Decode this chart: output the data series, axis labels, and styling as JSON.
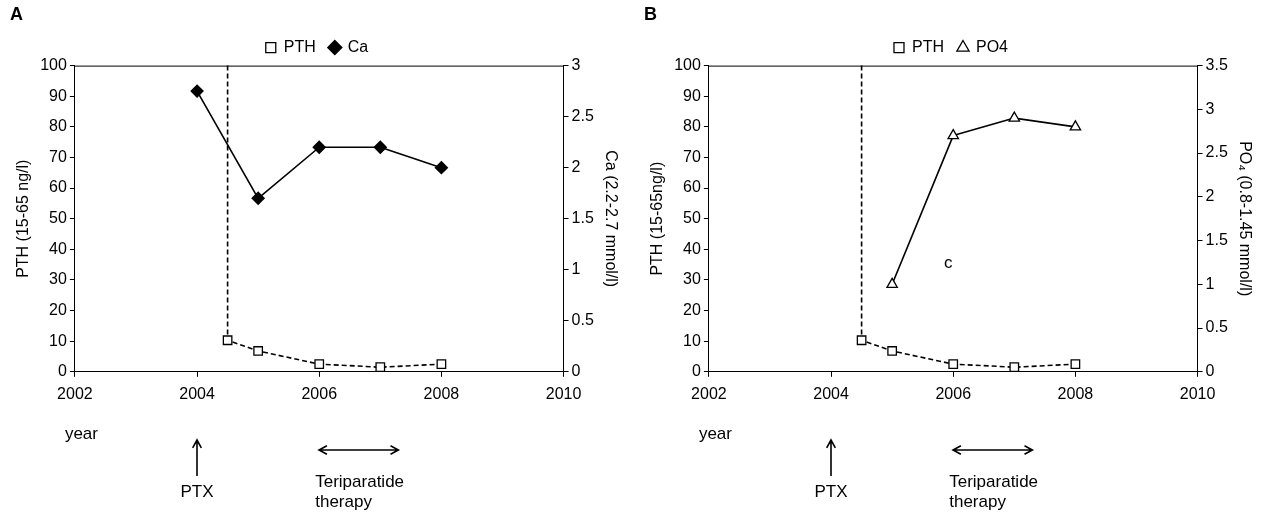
{
  "chart_data": [
    {
      "type": "line",
      "title": "A",
      "xlabel": "year",
      "ylabel": "PTH (15-65 ng/l)",
      "y2label": "Ca (2.2-2.7 mmol/l)",
      "legend": "top",
      "xlim": [
        2002,
        2010
      ],
      "xticks": [
        2002,
        2004,
        2006,
        2008,
        2010
      ],
      "ylim": [
        0,
        100
      ],
      "yticks": [
        0,
        10,
        20,
        30,
        40,
        50,
        60,
        70,
        80,
        90,
        100
      ],
      "y2lim": [
        0,
        3
      ],
      "y2ticks": [
        0,
        0.5,
        1,
        1.5,
        2,
        2.5,
        3
      ],
      "series": [
        {
          "name": "PTH",
          "color": "#000000",
          "marker": "square",
          "line_style": "dashed",
          "x": [
            2004.5,
            2004.5,
            2005,
            2006,
            2007,
            2008
          ],
          "values": [
            100,
            10.3,
            6.8,
            2.5,
            1.5,
            2.5
          ]
        },
        {
          "name": "Ca",
          "color": "#000000",
          "marker": "diamond",
          "line_style": "solid",
          "axis": "y2",
          "x": [
            2004,
            2005,
            2006,
            2007,
            2008
          ],
          "values": [
            2.75,
            1.7,
            2.2,
            2.2,
            2.0
          ]
        }
      ],
      "annotations": [
        "PTX",
        "Teriparatide therapy"
      ]
    },
    {
      "type": "line",
      "title": "B",
      "xlabel": "year",
      "ylabel": "PTH (15-65ng/l)",
      "y2label": "PO₄ (0.8-1.45 mmol/l)",
      "legend": "top",
      "xlim": [
        2002,
        2010
      ],
      "xticks": [
        2002,
        2004,
        2006,
        2008,
        2010
      ],
      "ylim": [
        0,
        100
      ],
      "yticks": [
        0,
        10,
        20,
        30,
        40,
        50,
        60,
        70,
        80,
        90,
        100
      ],
      "y2lim": [
        0,
        3.5
      ],
      "y2ticks": [
        0,
        0.5,
        1,
        1.5,
        2,
        2.5,
        3,
        3.5
      ],
      "series": [
        {
          "name": "PTH",
          "color": "#000000",
          "marker": "square",
          "line_style": "dashed",
          "x": [
            2004.5,
            2004.5,
            2005,
            2006,
            2007,
            2008
          ],
          "values": [
            100,
            10.3,
            6.8,
            2.5,
            1.5,
            2.5
          ]
        },
        {
          "name": "PO4",
          "color": "#000000",
          "marker": "triangle",
          "line_style": "solid",
          "axis": "y2",
          "x": [
            2005,
            2006,
            2007,
            2008
          ],
          "values": [
            1.0,
            2.7,
            2.9,
            2.8
          ]
        }
      ],
      "annotations": [
        "PTX",
        "Teriparatide therapy",
        "c"
      ]
    }
  ]
}
